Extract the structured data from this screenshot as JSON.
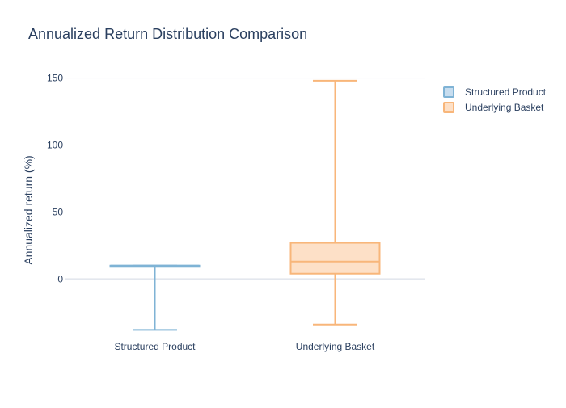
{
  "chart_data": {
    "type": "box",
    "title": "Annualized Return Distribution Comparison",
    "xlabel": "",
    "ylabel": "Annualized return (%)",
    "ylim": [
      -45,
      160
    ],
    "yticks": [
      0,
      50,
      100,
      150
    ],
    "grid": true,
    "legend_position": "top-right",
    "categories": [
      "Structured Product",
      "Underlying Basket"
    ],
    "series": [
      {
        "name": "Structured Product",
        "color": "#7fb3d5",
        "fill": "#c7ddef",
        "min": -38,
        "q1": 10,
        "median": 10,
        "q3": 10,
        "max": 10
      },
      {
        "name": "Underlying Basket",
        "color": "#f8b67a",
        "fill": "#fde0c7",
        "min": -34,
        "q1": 4,
        "median": 13,
        "q3": 27,
        "max": 148
      }
    ]
  },
  "colors": {
    "text": "#2a3f5f",
    "grid": "#eef0f4",
    "zero_line": "#e3e7ee"
  }
}
